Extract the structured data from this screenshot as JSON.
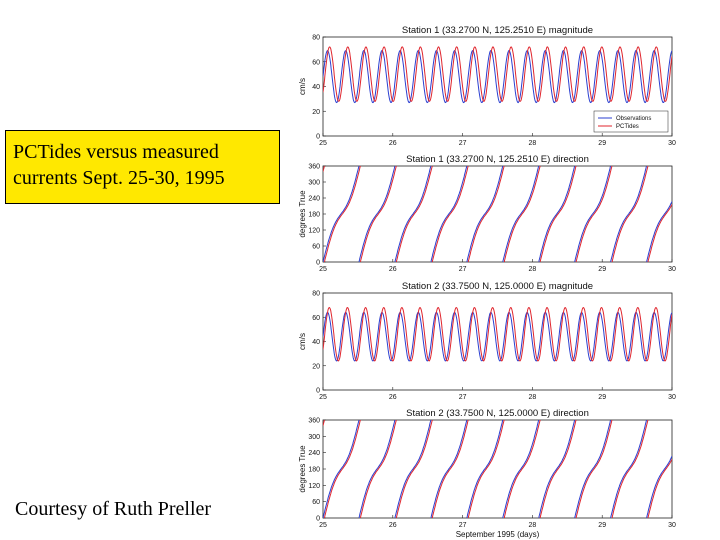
{
  "slide": {
    "callout_line1": "PCTides versus measured",
    "callout_line2": "currents Sept. 25-30, 1995",
    "credit": "Courtesy of Ruth Preller"
  },
  "chart_data": [
    {
      "type": "line",
      "title": "Station 1 (33.2700 N, 125.2510 E) magnitude",
      "ylabel": "cm/s",
      "xlabel": "",
      "xlim": [
        25,
        30
      ],
      "ylim": [
        0,
        80
      ],
      "x_ticks": [
        "25",
        "26",
        "27",
        "28",
        "29",
        "30"
      ],
      "y_ticks": [
        "0",
        "20",
        "40",
        "60",
        "80"
      ],
      "legend": {
        "position": "bottom-right",
        "entries": [
          "Observations",
          "PCTides"
        ]
      },
      "series": [
        {
          "name": "Observations",
          "color": "#2b3fd1",
          "kind": "magnitude",
          "mean": 48,
          "amp": 21,
          "period_days": 0.26,
          "phase": 0.0
        },
        {
          "name": "PCTides",
          "color": "#e0252d",
          "kind": "magnitude",
          "mean": 50,
          "amp": 22,
          "period_days": 0.26,
          "phase": 0.03
        }
      ]
    },
    {
      "type": "line",
      "title": "Station 1 (33.2700 N, 125.2510 E) direction",
      "ylabel": "degrees True",
      "xlabel": "",
      "xlim": [
        25,
        30
      ],
      "ylim": [
        0,
        360
      ],
      "x_ticks": [
        "25",
        "26",
        "27",
        "28",
        "29",
        "30"
      ],
      "y_ticks": [
        "0",
        "60",
        "120",
        "180",
        "240",
        "300",
        "360"
      ],
      "series": [
        {
          "name": "Observations",
          "color": "#2b3fd1",
          "kind": "direction",
          "period_days": 0.515,
          "phase": 0.0
        },
        {
          "name": "PCTides",
          "color": "#e0252d",
          "kind": "direction",
          "period_days": 0.515,
          "phase": 0.02
        }
      ]
    },
    {
      "type": "line",
      "title": "Station 2 (33.7500 N, 125.0000 E) magnitude",
      "ylabel": "cm/s",
      "xlabel": "",
      "xlim": [
        25,
        30
      ],
      "ylim": [
        0,
        80
      ],
      "x_ticks": [
        "25",
        "26",
        "27",
        "28",
        "29",
        "30"
      ],
      "y_ticks": [
        "0",
        "20",
        "40",
        "60",
        "80"
      ],
      "series": [
        {
          "name": "Observations",
          "color": "#2b3fd1",
          "kind": "magnitude",
          "mean": 44,
          "amp": 20,
          "period_days": 0.26,
          "phase": 0.0
        },
        {
          "name": "PCTides",
          "color": "#e0252d",
          "kind": "magnitude",
          "mean": 46,
          "amp": 22,
          "period_days": 0.26,
          "phase": 0.025
        }
      ]
    },
    {
      "type": "line",
      "title": "Station 2 (33.7500 N, 125.0000 E) direction",
      "ylabel": "degrees True",
      "xlabel": "September 1995 (days)",
      "xlim": [
        25,
        30
      ],
      "ylim": [
        0,
        360
      ],
      "x_ticks": [
        "25",
        "26",
        "27",
        "28",
        "29",
        "30"
      ],
      "y_ticks": [
        "0",
        "60",
        "120",
        "180",
        "240",
        "300",
        "360"
      ],
      "series": [
        {
          "name": "Observations",
          "color": "#2b3fd1",
          "kind": "direction",
          "period_days": 0.515,
          "phase": 0.0
        },
        {
          "name": "PCTides",
          "color": "#e0252d",
          "kind": "direction",
          "period_days": 0.515,
          "phase": 0.02
        }
      ]
    }
  ]
}
